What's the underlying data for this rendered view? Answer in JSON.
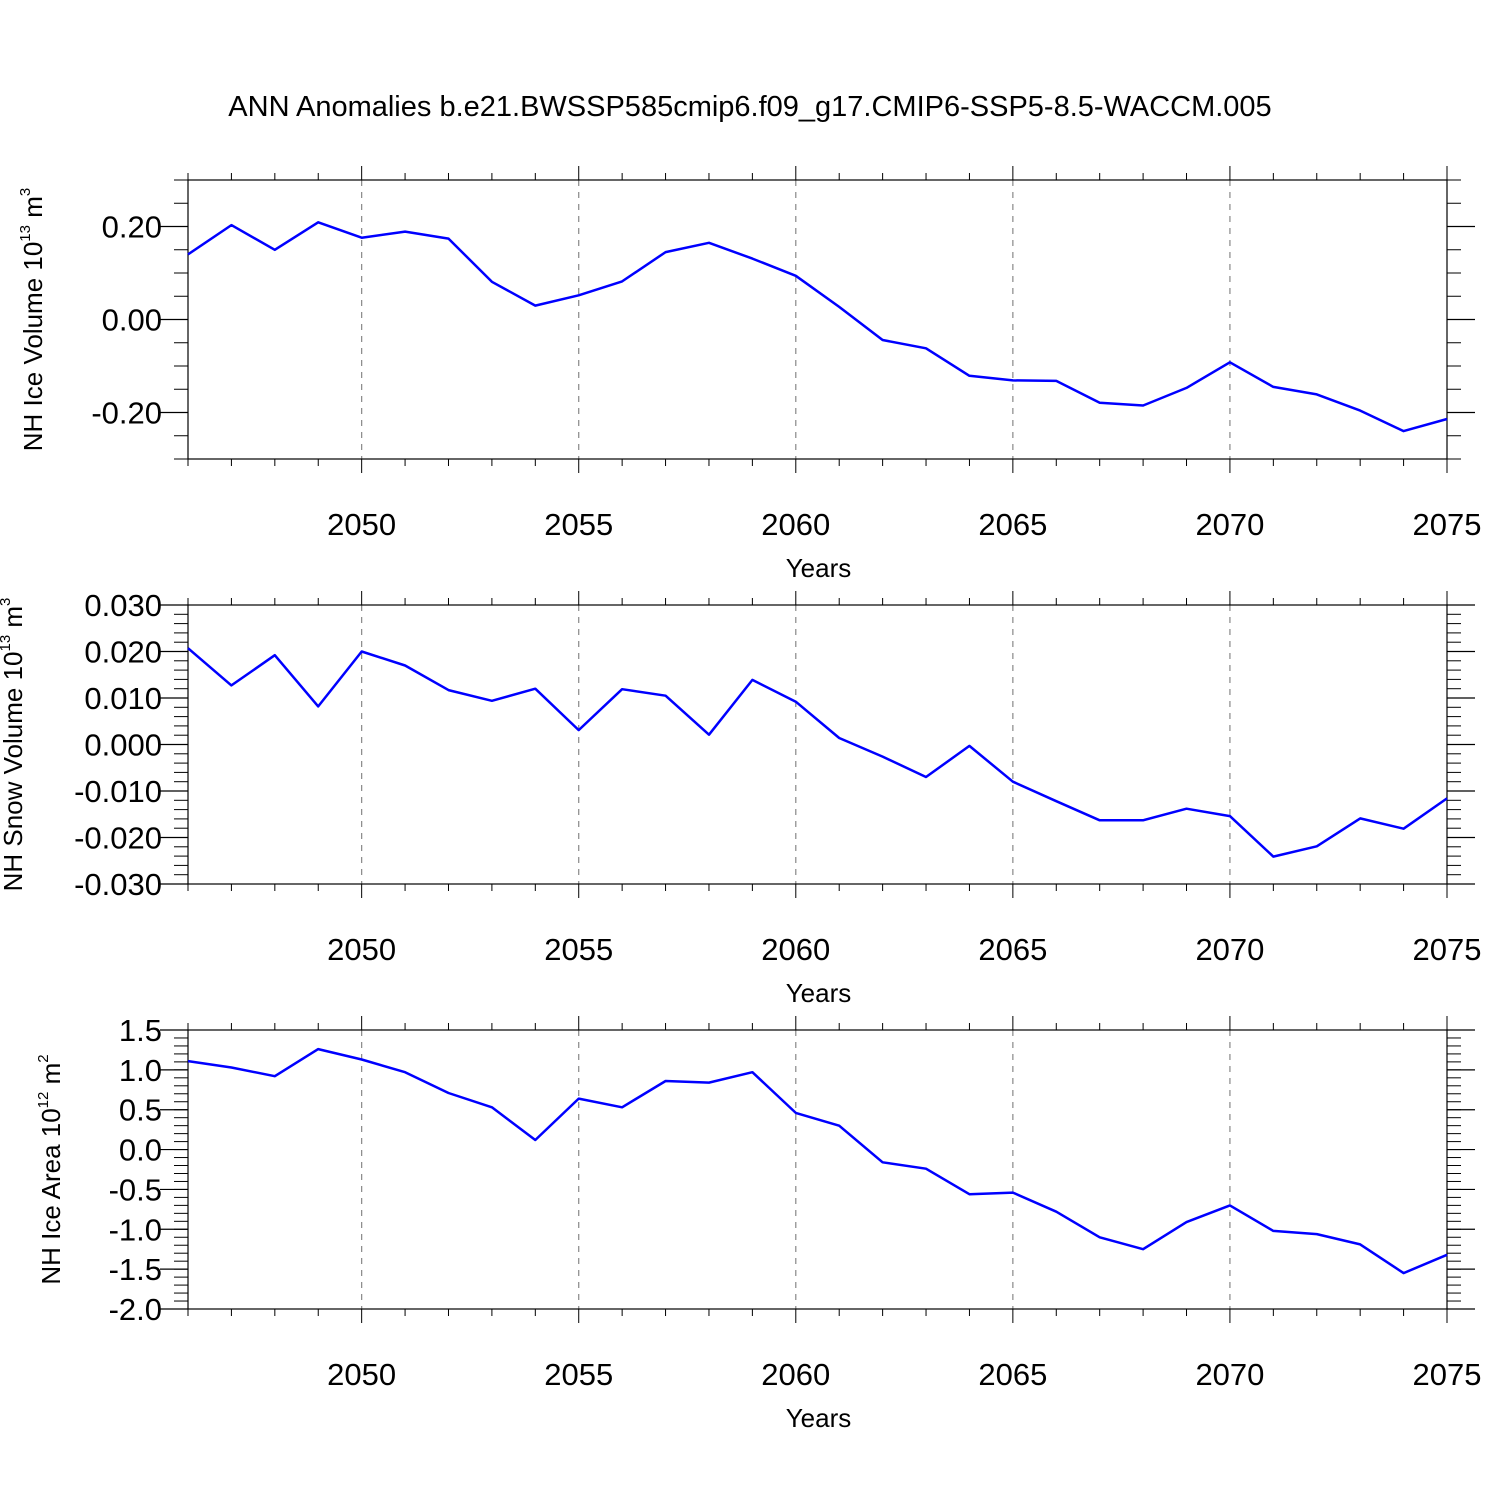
{
  "title": "ANN Anomalies b.e21.BWSSP585cmip6.f09_g17.CMIP6-SSP5-8.5-WACCM.005",
  "colors": {
    "series": "#0000ff",
    "axis": "#000000",
    "grid": "#888888"
  },
  "chart_data": [
    {
      "type": "line",
      "title": "ANN Anomalies b.e21.BWSSP585cmip6.f09_g17.CMIP6-SSP5-8.5-WACCM.005",
      "xlabel": "Years",
      "ylabel": {
        "text": "NH Ice Volume 10",
        "exp": "13",
        "unit": " m",
        "unit_exp": "3"
      },
      "xlim": [
        2046,
        2075
      ],
      "ylim": [
        -0.3,
        0.3
      ],
      "xticks": [
        "2050",
        "2055",
        "2060",
        "2065",
        "2070",
        "2075"
      ],
      "yticks": [
        "0.20",
        "0.00",
        "-0.20"
      ],
      "grid": "vertical dashed at labeled years",
      "x": [
        2046,
        2047,
        2048,
        2049,
        2050,
        2051,
        2052,
        2053,
        2054,
        2055,
        2056,
        2057,
        2058,
        2059,
        2060,
        2061,
        2062,
        2063,
        2064,
        2065,
        2066,
        2067,
        2068,
        2069,
        2070,
        2071,
        2072,
        2073,
        2074,
        2075
      ],
      "values": [
        0.14,
        0.203,
        0.15,
        0.209,
        0.176,
        0.189,
        0.174,
        0.081,
        0.03,
        0.052,
        0.082,
        0.145,
        0.165,
        0.131,
        0.094,
        0.027,
        -0.044,
        -0.062,
        -0.121,
        -0.131,
        -0.132,
        -0.179,
        -0.185,
        -0.147,
        -0.092,
        -0.145,
        -0.161,
        -0.196,
        -0.24,
        -0.214
      ]
    },
    {
      "type": "line",
      "xlabel": "Years",
      "ylabel": {
        "text": "NH Snow Volume 10",
        "exp": "13",
        "unit": " m",
        "unit_exp": "3"
      },
      "xlim": [
        2046,
        2075
      ],
      "ylim": [
        -0.03,
        0.03
      ],
      "xticks": [
        "2050",
        "2055",
        "2060",
        "2065",
        "2070",
        "2075"
      ],
      "yticks": [
        "0.030",
        "0.020",
        "0.010",
        "0.000",
        "-0.010",
        "-0.020",
        "-0.030"
      ],
      "grid": "vertical dashed at labeled years",
      "x": [
        2046,
        2047,
        2048,
        2049,
        2050,
        2051,
        2052,
        2053,
        2054,
        2055,
        2056,
        2057,
        2058,
        2059,
        2060,
        2061,
        2062,
        2063,
        2064,
        2065,
        2066,
        2067,
        2068,
        2069,
        2070,
        2071,
        2072,
        2073,
        2074,
        2075
      ],
      "values": [
        0.0207,
        0.0127,
        0.0192,
        0.0082,
        0.02,
        0.017,
        0.0117,
        0.0094,
        0.012,
        0.0031,
        0.0119,
        0.0105,
        0.0021,
        0.0139,
        0.0092,
        0.0014,
        -0.0026,
        -0.007,
        -0.0003,
        -0.008,
        -0.0122,
        -0.0163,
        -0.0163,
        -0.0138,
        -0.0154,
        -0.0241,
        -0.0219,
        -0.0159,
        -0.0181,
        -0.0116
      ]
    },
    {
      "type": "line",
      "xlabel": "Years",
      "ylabel": {
        "text": "NH Ice Area 10",
        "exp": "12",
        "unit": " m",
        "unit_exp": "2"
      },
      "xlim": [
        2046,
        2075
      ],
      "ylim": [
        -2.0,
        1.5
      ],
      "xticks": [
        "2050",
        "2055",
        "2060",
        "2065",
        "2070",
        "2075"
      ],
      "yticks": [
        "1.5",
        "1.0",
        "0.5",
        "0.0",
        "-0.5",
        "-1.0",
        "-1.5",
        "-2.0"
      ],
      "grid": "vertical dashed at labeled years",
      "x": [
        2046,
        2047,
        2048,
        2049,
        2050,
        2051,
        2052,
        2053,
        2054,
        2055,
        2056,
        2057,
        2058,
        2059,
        2060,
        2061,
        2062,
        2063,
        2064,
        2065,
        2066,
        2067,
        2068,
        2069,
        2070,
        2071,
        2072,
        2073,
        2074,
        2075
      ],
      "values": [
        1.11,
        1.03,
        0.92,
        1.26,
        1.13,
        0.97,
        0.71,
        0.53,
        0.12,
        0.64,
        0.53,
        0.86,
        0.84,
        0.97,
        0.46,
        0.3,
        -0.16,
        -0.24,
        -0.56,
        -0.54,
        -0.78,
        -1.1,
        -1.25,
        -0.91,
        -0.7,
        -1.02,
        -1.06,
        -1.19,
        -1.55,
        -1.32
      ]
    }
  ]
}
